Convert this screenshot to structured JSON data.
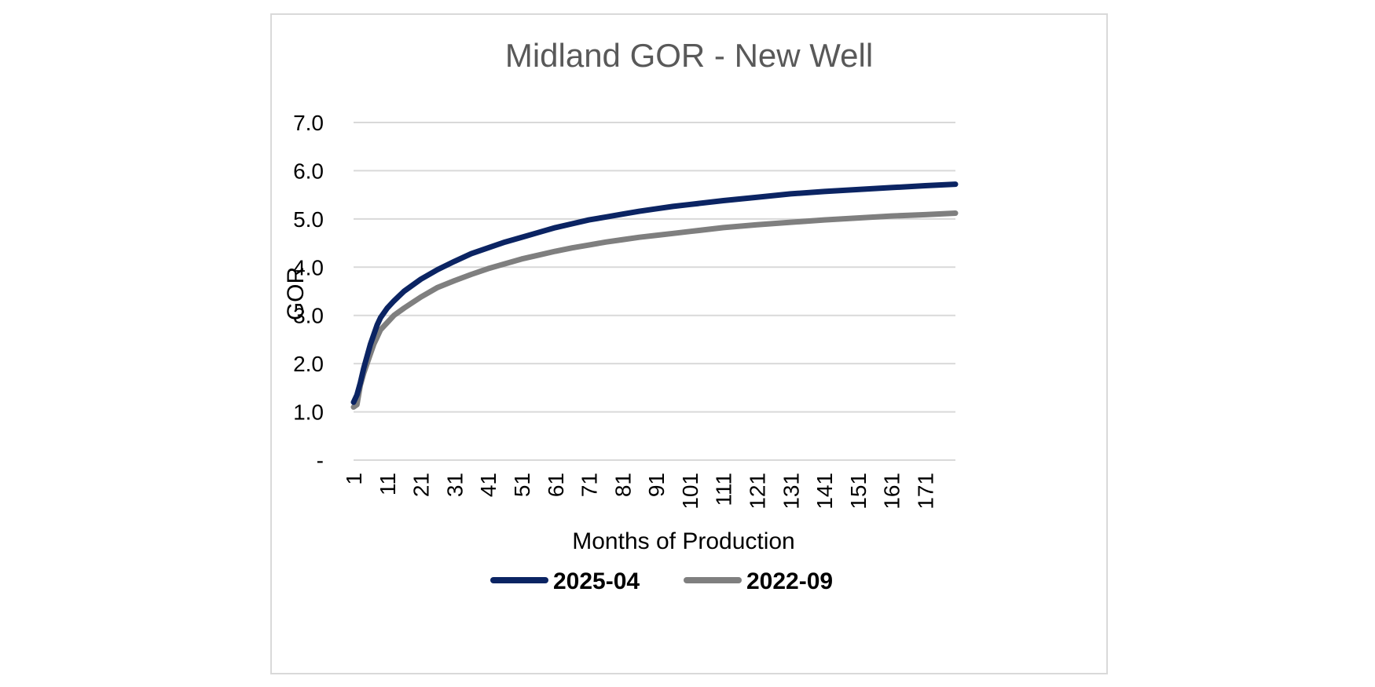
{
  "chart_data": {
    "type": "line",
    "title": "Midland GOR - New Well",
    "xlabel": "Months of Production",
    "ylabel": "GOR",
    "x_range": [
      1,
      180
    ],
    "ylim": [
      0,
      7
    ],
    "y_ticks": [
      {
        "value": 0,
        "label": "-"
      },
      {
        "value": 1,
        "label": "1.0"
      },
      {
        "value": 2,
        "label": "2.0"
      },
      {
        "value": 3,
        "label": "3.0"
      },
      {
        "value": 4,
        "label": "4.0"
      },
      {
        "value": 5,
        "label": "5.0"
      },
      {
        "value": 6,
        "label": "6.0"
      },
      {
        "value": 7,
        "label": "7.0"
      }
    ],
    "x_ticks": [
      "1",
      "11",
      "21",
      "31",
      "41",
      "51",
      "61",
      "71",
      "81",
      "91",
      "101",
      "111",
      "121",
      "131",
      "141",
      "151",
      "161",
      "171"
    ],
    "grid": true,
    "legend_position": "bottom",
    "series": [
      {
        "name": "2025-04",
        "color": "#0b2463",
        "x": [
          1,
          2,
          3,
          4,
          5,
          6,
          7,
          8,
          9,
          11,
          13,
          16,
          21,
          26,
          31,
          36,
          41,
          46,
          51,
          56,
          61,
          66,
          71,
          76,
          81,
          86,
          91,
          96,
          101,
          111,
          121,
          131,
          141,
          151,
          161,
          171,
          180
        ],
        "values": [
          1.2,
          1.35,
          1.6,
          1.9,
          2.15,
          2.4,
          2.6,
          2.8,
          2.95,
          3.15,
          3.3,
          3.5,
          3.75,
          3.95,
          4.12,
          4.28,
          4.4,
          4.52,
          4.62,
          4.72,
          4.82,
          4.9,
          4.98,
          5.04,
          5.1,
          5.16,
          5.21,
          5.26,
          5.3,
          5.38,
          5.45,
          5.52,
          5.57,
          5.61,
          5.65,
          5.69,
          5.72
        ]
      },
      {
        "name": "2022-09",
        "color": "#7f7f7f",
        "x": [
          1,
          2,
          3,
          4,
          5,
          6,
          7,
          8,
          9,
          11,
          13,
          16,
          21,
          26,
          31,
          36,
          41,
          46,
          51,
          56,
          61,
          66,
          71,
          76,
          81,
          86,
          91,
          96,
          101,
          111,
          121,
          131,
          141,
          151,
          161,
          171,
          180
        ],
        "values": [
          1.1,
          1.15,
          1.55,
          1.8,
          2.0,
          2.2,
          2.4,
          2.55,
          2.7,
          2.85,
          3.0,
          3.15,
          3.38,
          3.58,
          3.72,
          3.85,
          3.97,
          4.07,
          4.17,
          4.25,
          4.33,
          4.4,
          4.46,
          4.52,
          4.57,
          4.62,
          4.66,
          4.7,
          4.74,
          4.82,
          4.88,
          4.93,
          4.98,
          5.02,
          5.06,
          5.09,
          5.12
        ]
      }
    ]
  }
}
